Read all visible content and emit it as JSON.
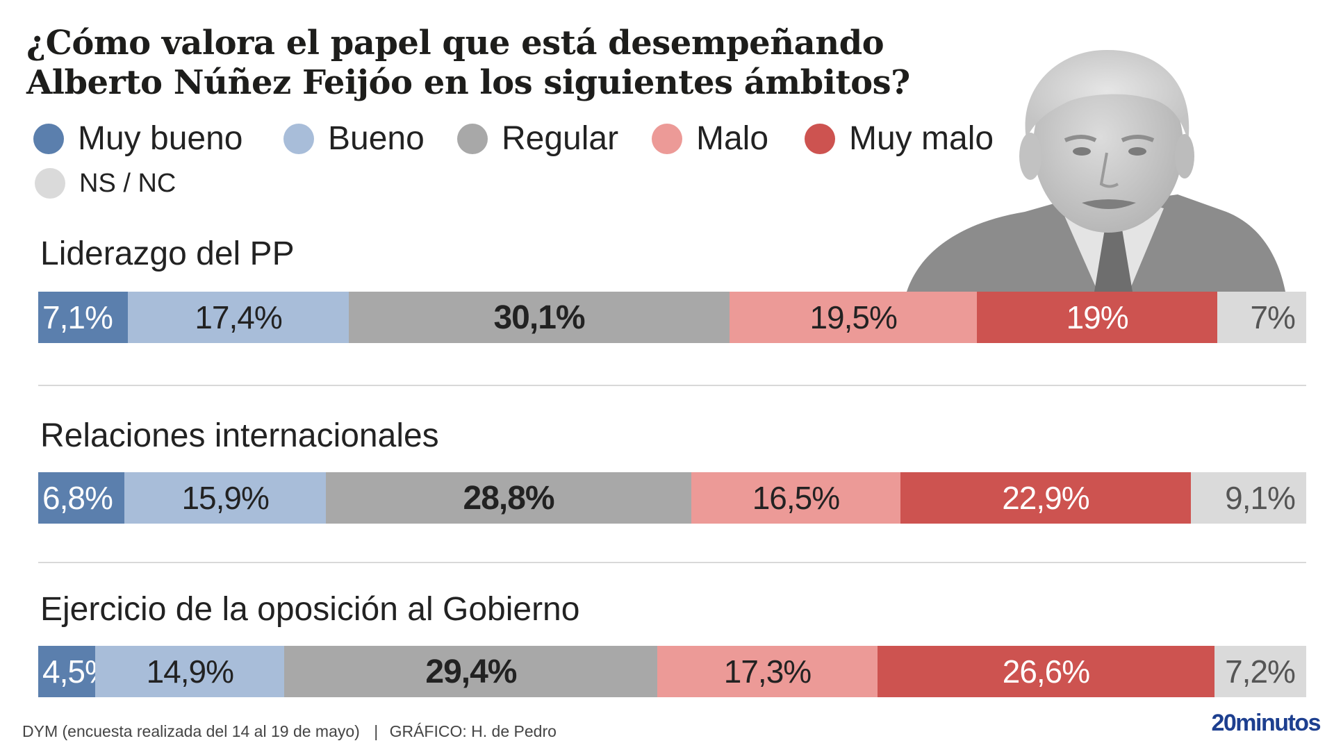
{
  "title": "¿Cómo valora el papel que está desempeñando Alberto Núñez Feijóo en los siguientes ámbitos?",
  "colors": {
    "muy_bueno": "#5b7fad",
    "bueno": "#a8bdd9",
    "regular": "#a8a8a8",
    "malo": "#ec9a97",
    "muy_malo": "#cd5350",
    "ns_nc": "#dadada",
    "brand": "#1d3f8f"
  },
  "legend": [
    {
      "label": "Muy bueno",
      "color": "#5b7fad"
    },
    {
      "label": "Bueno",
      "color": "#a8bdd9"
    },
    {
      "label": "Regular",
      "color": "#a8a8a8"
    },
    {
      "label": "Malo",
      "color": "#ec9a97"
    },
    {
      "label": "Muy malo",
      "color": "#cd5350"
    },
    {
      "label": "NS / NC",
      "color": "#dadada"
    }
  ],
  "chart_data": {
    "type": "bar",
    "stacked": true,
    "orientation": "horizontal",
    "categories": [
      "Liderazgo del PP",
      "Relaciones internacionales",
      "Ejercicio de la oposición al Gobierno"
    ],
    "series": [
      {
        "name": "Muy bueno",
        "values": [
          7.1,
          6.8,
          4.5
        ],
        "labels": [
          "7,1%",
          "6,8%",
          "4,5%"
        ]
      },
      {
        "name": "Bueno",
        "values": [
          17.4,
          15.9,
          14.9
        ],
        "labels": [
          "17,4%",
          "15,9%",
          "14,9%"
        ]
      },
      {
        "name": "Regular",
        "values": [
          30.1,
          28.8,
          29.4
        ],
        "labels": [
          "30,1%",
          "28,8%",
          "29,4%"
        ]
      },
      {
        "name": "Malo",
        "values": [
          19.5,
          16.5,
          17.3
        ],
        "labels": [
          "19,5%",
          "16,5%",
          "17,3%"
        ]
      },
      {
        "name": "Muy malo",
        "values": [
          19,
          22.9,
          26.6
        ],
        "labels": [
          "19%",
          "22,9%",
          "26,6%"
        ]
      },
      {
        "name": "NS / NC",
        "values": [
          7,
          9.1,
          7.2
        ],
        "labels": [
          "7%",
          "9,1%",
          "7,2%"
        ]
      }
    ],
    "legend_position": "top",
    "grid": false
  },
  "footer": {
    "source": "DYM (encuesta realizada del 14 al 19 de mayo)",
    "credit": "GRÁFICO: H. de Pedro",
    "separator": "|",
    "brand": "20minutos"
  },
  "portrait_icon": "person-portrait-photo"
}
